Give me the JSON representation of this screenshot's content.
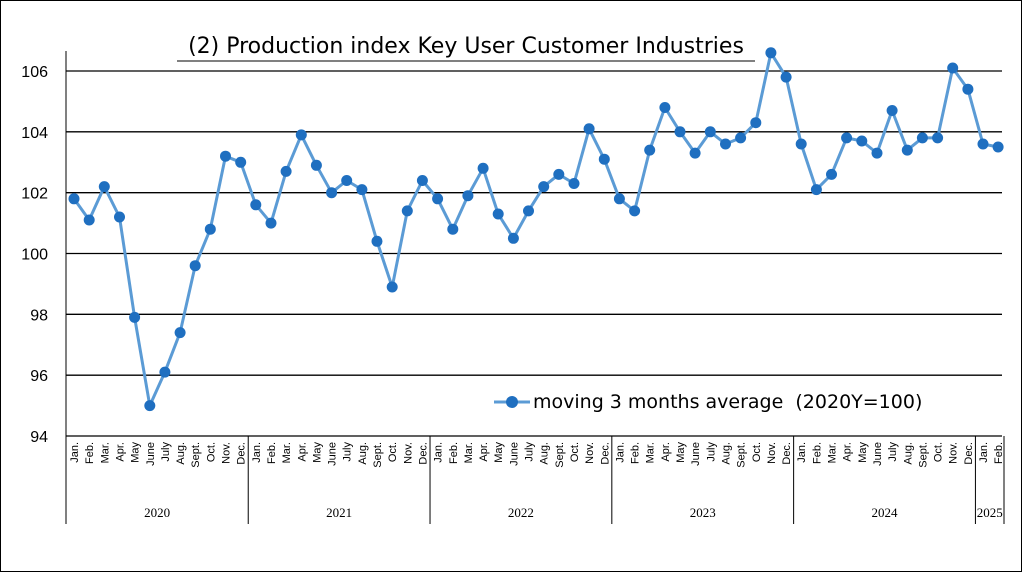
{
  "chart_data": {
    "type": "line",
    "title": "(2) Production index Key User Customer Industries",
    "ylim": [
      94,
      106
    ],
    "yticks": [
      94,
      96,
      98,
      100,
      102,
      104,
      106
    ],
    "grid": "horizontal",
    "legend_position": "bottom-right",
    "series": [
      {
        "name": "moving 3 months average  (2020Y=100)",
        "color": "#5b9bd5",
        "values": [
          101.8,
          101.1,
          102.2,
          101.2,
          97.9,
          95.0,
          96.1,
          97.4,
          99.6,
          100.8,
          103.2,
          103.0,
          101.6,
          101.0,
          102.7,
          103.9,
          102.9,
          102.0,
          102.4,
          102.1,
          100.4,
          98.9,
          101.4,
          102.4,
          101.8,
          100.8,
          101.9,
          102.8,
          101.3,
          100.5,
          101.4,
          102.2,
          102.6,
          102.3,
          104.1,
          103.1,
          101.8,
          101.4,
          103.4,
          104.8,
          104.0,
          103.3,
          104.0,
          103.6,
          103.8,
          104.3,
          106.6,
          105.8,
          103.6,
          102.1,
          102.6,
          103.8,
          103.7,
          103.3,
          104.7,
          103.4,
          103.8,
          103.8,
          106.1,
          105.4,
          103.6,
          103.5
        ]
      }
    ],
    "years": [
      {
        "label": "2020",
        "months": 12
      },
      {
        "label": "2021",
        "months": 12
      },
      {
        "label": "2022",
        "months": 12
      },
      {
        "label": "2023",
        "months": 12
      },
      {
        "label": "2024",
        "months": 12
      },
      {
        "label": "2025",
        "months": 2
      }
    ],
    "month_labels": [
      "Jan.",
      "Feb.",
      "Mar.",
      "Apr.",
      "May",
      "June",
      "July",
      "Aug.",
      "Sept.",
      "Oct.",
      "Nov.",
      "Dec."
    ]
  }
}
